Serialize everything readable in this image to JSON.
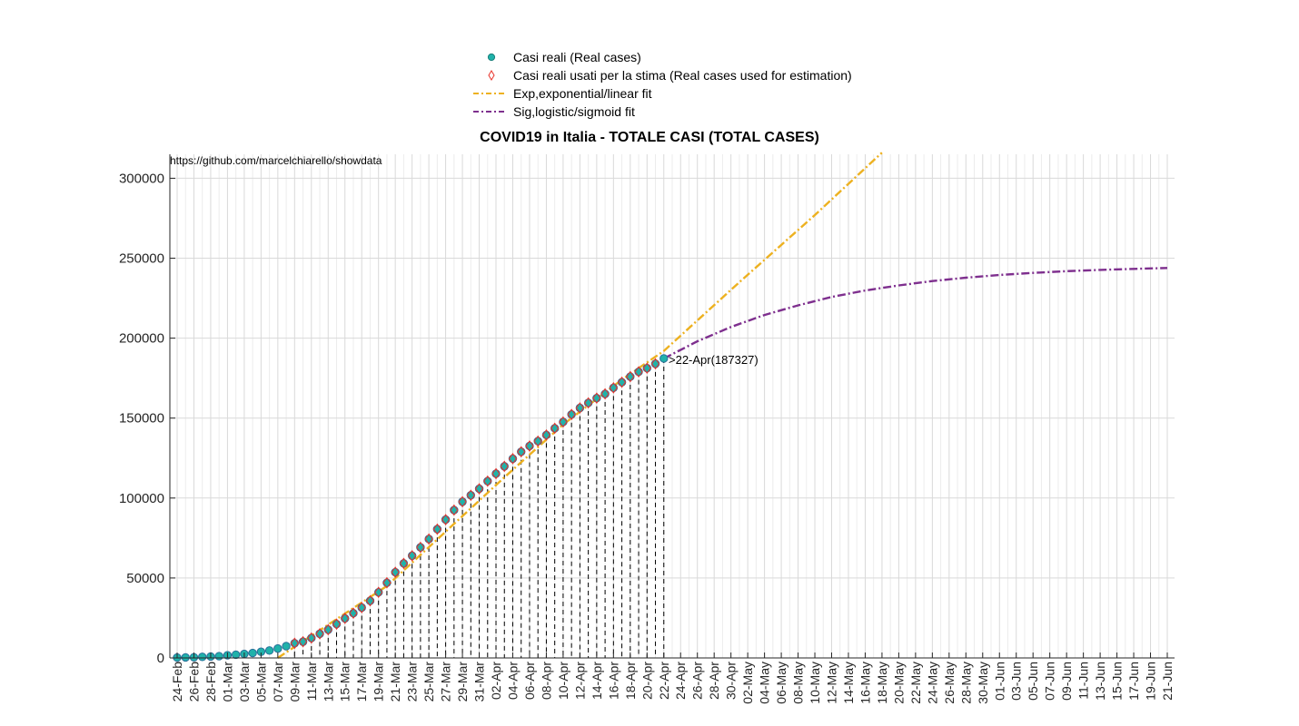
{
  "chart_data": {
    "type": "line",
    "title": "COVID19 in Italia - TOTALE CASI (TOTAL CASES)",
    "source_text": "https://github.com/marcelchiarello/showdata",
    "xlabel": "",
    "ylabel": "",
    "x_start_date": "2020-02-24",
    "x_end_date": "2020-06-21",
    "x_tick_every_days": 2,
    "ylim": [
      0,
      315000
    ],
    "yticks": [
      0,
      50000,
      100000,
      150000,
      200000,
      250000,
      300000
    ],
    "grid": true,
    "legend_position": "top",
    "legend": [
      {
        "label": "Casi reali (Real cases)",
        "marker": "filled-circle",
        "color": "#20b2aa"
      },
      {
        "label": "Casi reali usati per la stima (Real cases used for estimation)",
        "marker": "diamond",
        "color": "#e8332a"
      },
      {
        "label": "Exp,exponential/linear fit",
        "marker": "dash",
        "color": "#edb120"
      },
      {
        "label": "Sig,logistic/sigmoid fit",
        "marker": "dash",
        "color": "#7e2f8e"
      }
    ],
    "annotation": {
      "text": ">22-Apr(187327)",
      "x": "2020-04-22",
      "y": 187327
    },
    "series": [
      {
        "name": "Casi reali (Real cases)",
        "x_start": "2020-02-24",
        "values": [
          229,
          322,
          400,
          650,
          888,
          1128,
          1694,
          2036,
          2502,
          3089,
          3858,
          4636,
          5883,
          7375,
          9172,
          10149,
          12462,
          15113,
          17660,
          21157,
          24747,
          27980,
          31506,
          35713,
          41035,
          47021,
          53578,
          59138,
          63927,
          69176,
          74386,
          80539,
          86498,
          92472,
          97689,
          101739,
          105792,
          110574,
          115242,
          119827,
          124632,
          128948,
          132547,
          135586,
          139422,
          143626,
          147577,
          152271,
          156363,
          159516,
          162488,
          165155,
          168941,
          172434,
          175925,
          178972,
          181228,
          183957,
          187327
        ]
      },
      {
        "name": "Casi reali usati per la stima (Real cases used for estimation)",
        "x_start": "2020-03-09",
        "values": [
          9172,
          10149,
          12462,
          15113,
          17660,
          21157,
          24747,
          27980,
          31506,
          35713,
          41035,
          47021,
          53578,
          59138,
          63927,
          69176,
          74386,
          80539,
          86498,
          92472,
          97689,
          101739,
          105792,
          110574,
          115242,
          119827,
          124632,
          128948,
          132547,
          135586,
          139422,
          143626,
          147577,
          152271,
          156363,
          159516,
          162488,
          165155,
          168941,
          172434,
          175925,
          178972,
          181228,
          183957
        ]
      },
      {
        "name": "Exp,exponential/linear fit",
        "x": [
          "2020-03-07",
          "2020-03-20",
          "2020-03-27",
          "2020-04-03",
          "2020-04-10",
          "2020-04-17",
          "2020-04-22",
          "2020-05-01",
          "2020-05-10",
          "2020-05-18"
        ],
        "y": [
          0,
          45000,
          79000,
          113000,
          146000,
          174000,
          192000,
          235000,
          277000,
          316000
        ]
      },
      {
        "name": "Sig,logistic/sigmoid fit",
        "x": [
          "2020-04-22",
          "2020-04-26",
          "2020-04-30",
          "2020-05-04",
          "2020-05-08",
          "2020-05-12",
          "2020-05-16",
          "2020-05-20",
          "2020-05-24",
          "2020-05-28",
          "2020-06-01",
          "2020-06-05",
          "2020-06-09",
          "2020-06-13",
          "2020-06-17",
          "2020-06-21"
        ],
        "y": [
          187300,
          198000,
          207000,
          214500,
          220500,
          225800,
          229800,
          233000,
          235700,
          237800,
          239500,
          240800,
          241900,
          242700,
          243300,
          243900
        ]
      }
    ]
  }
}
